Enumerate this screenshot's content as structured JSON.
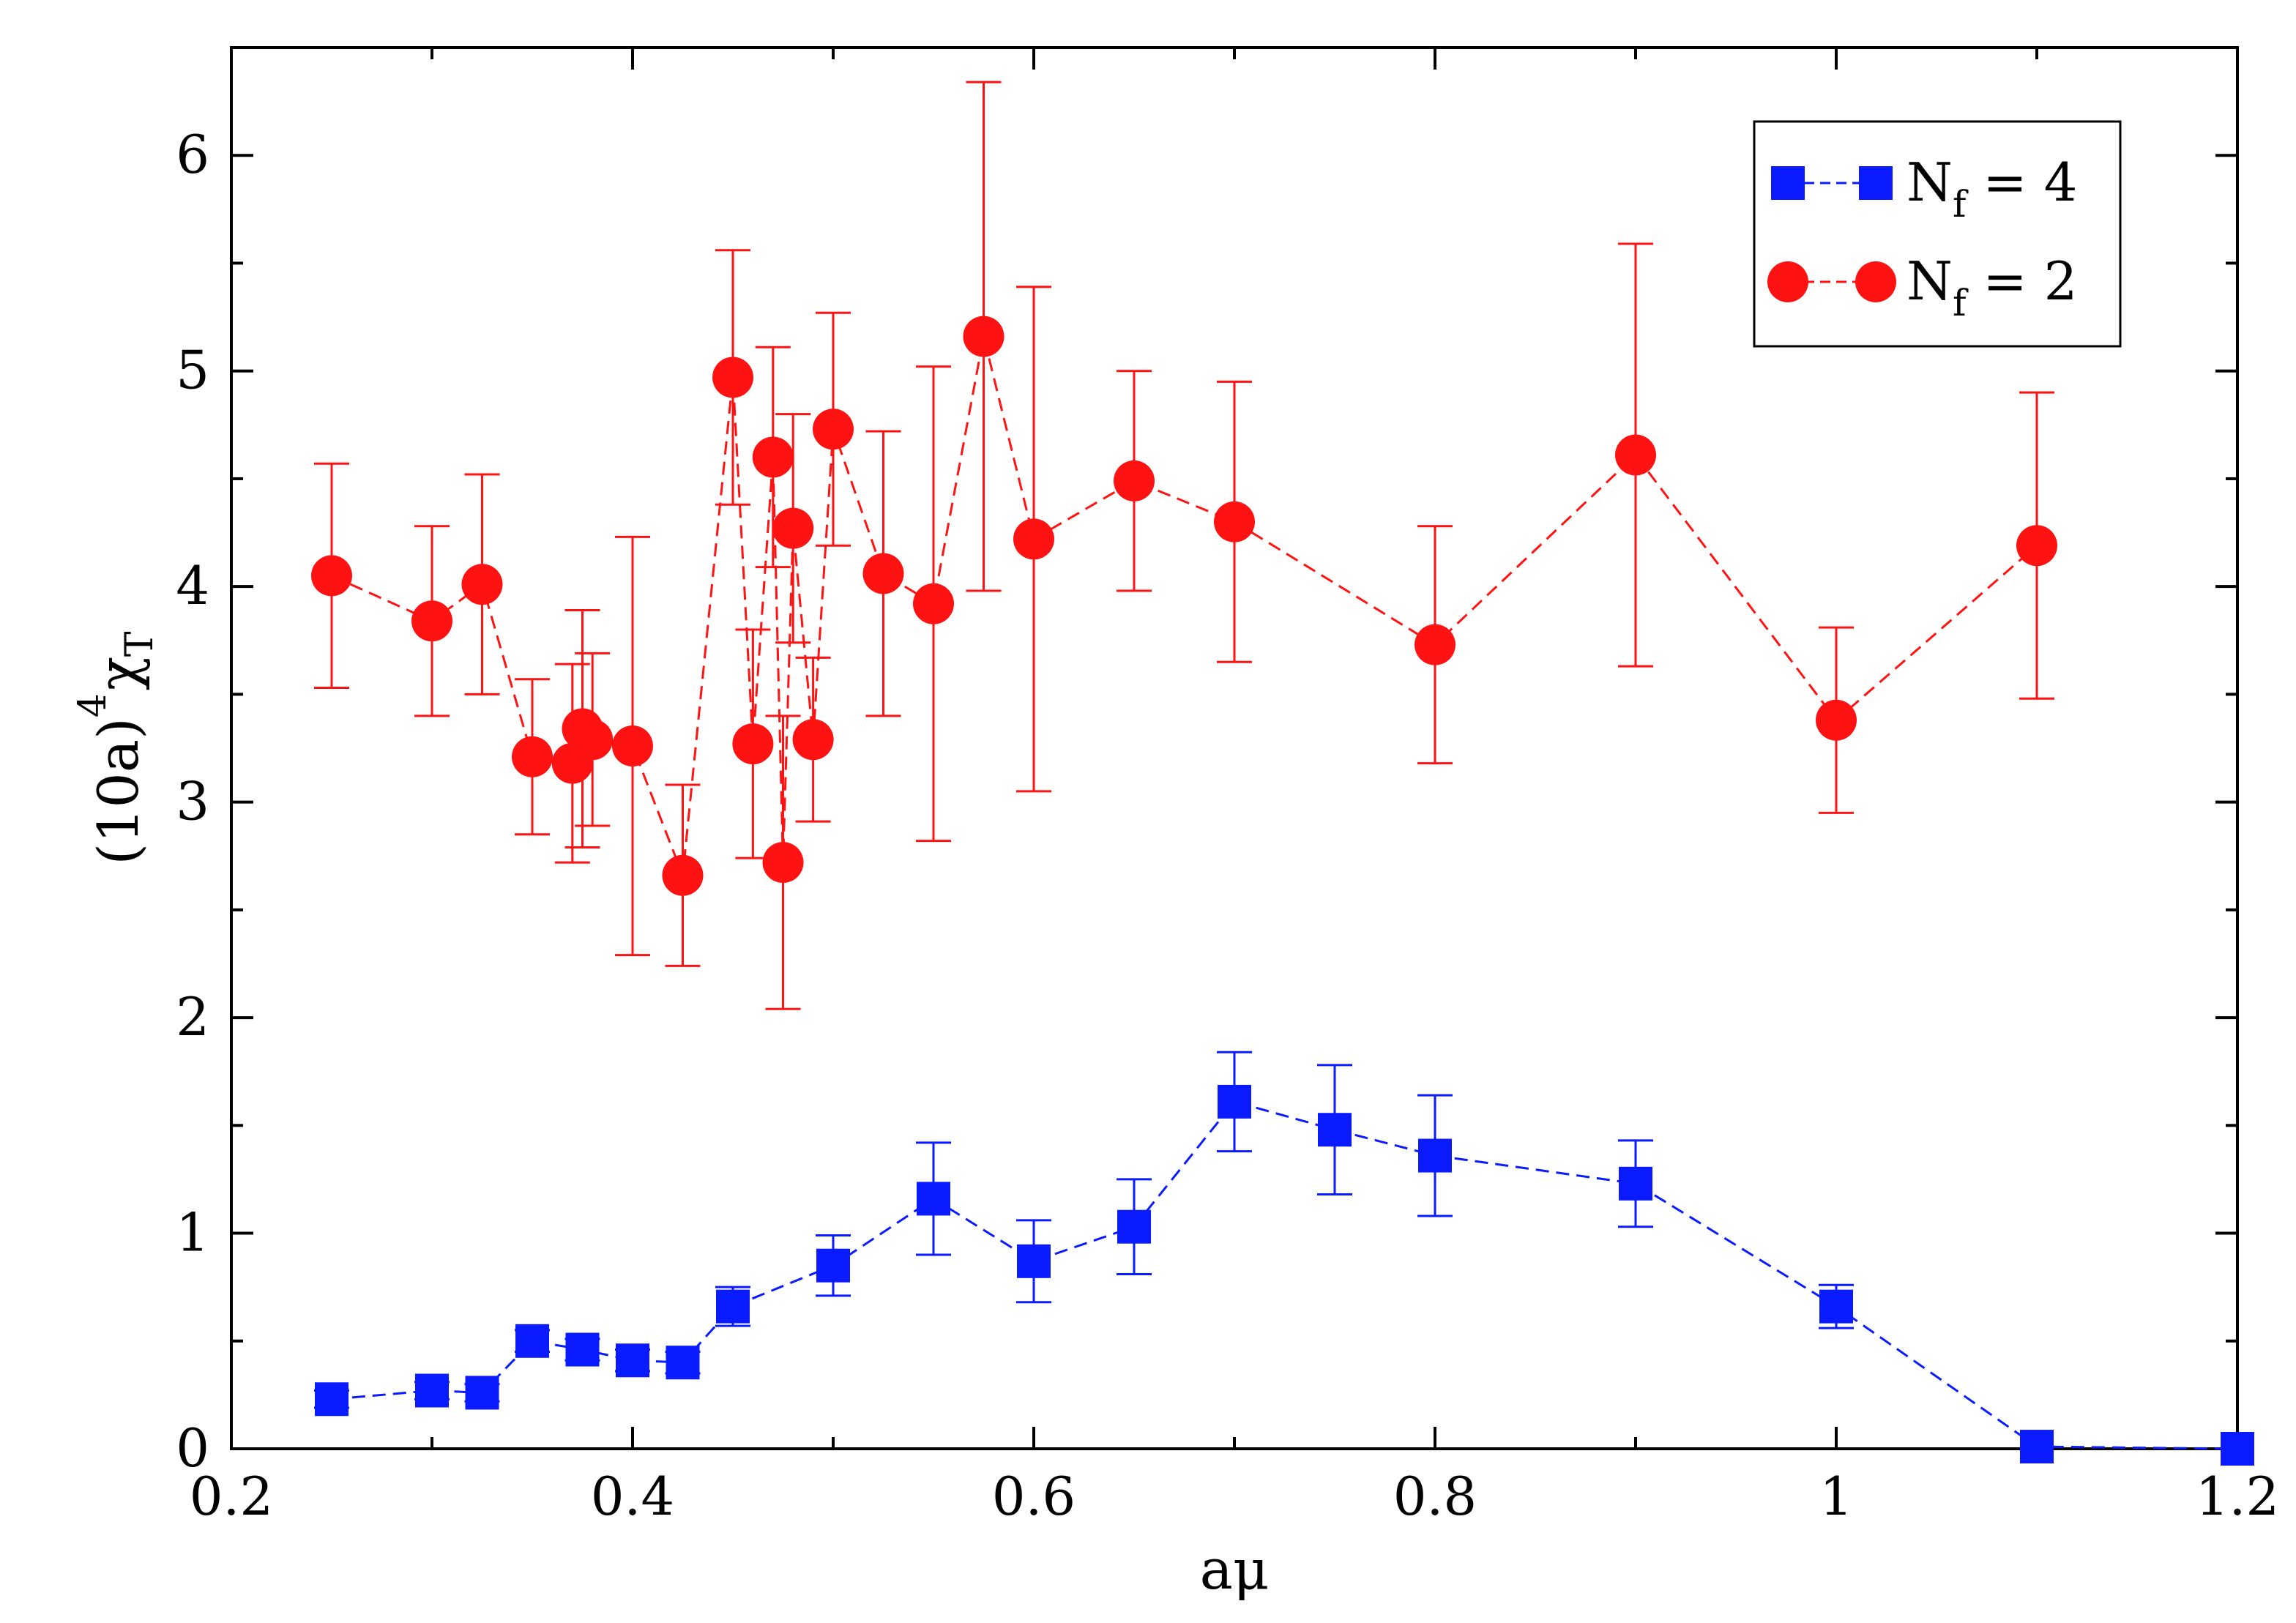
{
  "chart_data": {
    "type": "scatter",
    "title": "",
    "xlabel": "aμ",
    "ylabel": {
      "base": "(10a)",
      "power": "4",
      "symbol": "χ",
      "subscript": "T"
    },
    "xlim": [
      0.2,
      1.2
    ],
    "ylim": [
      0,
      6.5
    ],
    "x_ticks": [
      0.2,
      0.4,
      0.6,
      0.8,
      1.0,
      1.2
    ],
    "x_tick_labels": [
      "0.2",
      "0.4",
      "0.6",
      "0.8",
      "1",
      "1.2"
    ],
    "y_ticks": [
      0,
      1,
      2,
      3,
      4,
      5,
      6
    ],
    "y_tick_labels": [
      "0",
      "1",
      "2",
      "3",
      "4",
      "5",
      "6"
    ],
    "grid": false,
    "legend_position": "top-right",
    "series": [
      {
        "name": "Nf = 4",
        "label_main": "N",
        "label_sub": "f",
        "label_rest": " = 4",
        "marker": "square",
        "color": "#0a1bff",
        "line_style": "dashed",
        "points": [
          {
            "x": 0.25,
            "y": 0.23,
            "err": 0.04
          },
          {
            "x": 0.3,
            "y": 0.27,
            "err": 0.04
          },
          {
            "x": 0.325,
            "y": 0.26,
            "err": 0.04
          },
          {
            "x": 0.35,
            "y": 0.5,
            "err": 0.05
          },
          {
            "x": 0.375,
            "y": 0.46,
            "err": 0.05
          },
          {
            "x": 0.4,
            "y": 0.41,
            "err": 0.05
          },
          {
            "x": 0.425,
            "y": 0.4,
            "err": 0.05
          },
          {
            "x": 0.45,
            "y": 0.66,
            "err": 0.09
          },
          {
            "x": 0.5,
            "y": 0.85,
            "err": 0.14
          },
          {
            "x": 0.55,
            "y": 1.16,
            "err": 0.26
          },
          {
            "x": 0.6,
            "y": 0.87,
            "err": 0.19
          },
          {
            "x": 0.65,
            "y": 1.03,
            "err": 0.22
          },
          {
            "x": 0.7,
            "y": 1.61,
            "err": 0.23
          },
          {
            "x": 0.75,
            "y": 1.48,
            "err": 0.3
          },
          {
            "x": 0.8,
            "y": 1.36,
            "err": 0.28
          },
          {
            "x": 0.9,
            "y": 1.23,
            "err": 0.2
          },
          {
            "x": 1.0,
            "y": 0.66,
            "err": 0.1
          },
          {
            "x": 1.1,
            "y": 0.01,
            "err": 0.0
          },
          {
            "x": 1.2,
            "y": 0.0,
            "err": 0.0
          }
        ]
      },
      {
        "name": "Nf = 2",
        "label_main": "N",
        "label_sub": "f",
        "label_rest": " = 2",
        "marker": "circle",
        "color": "#ff1212",
        "line_style": "dashed",
        "points": [
          {
            "x": 0.25,
            "y": 4.05,
            "err": 0.52
          },
          {
            "x": 0.3,
            "y": 3.84,
            "err": 0.44
          },
          {
            "x": 0.325,
            "y": 4.01,
            "err": 0.51
          },
          {
            "x": 0.35,
            "y": 3.21,
            "err": 0.36
          },
          {
            "x": 0.37,
            "y": 3.18,
            "err": 0.46
          },
          {
            "x": 0.375,
            "y": 3.34,
            "err": 0.55
          },
          {
            "x": 0.38,
            "y": 3.29,
            "err": 0.4
          },
          {
            "x": 0.4,
            "y": 3.26,
            "err": 0.97
          },
          {
            "x": 0.425,
            "y": 2.66,
            "err": 0.42
          },
          {
            "x": 0.45,
            "y": 4.97,
            "err": 0.59
          },
          {
            "x": 0.46,
            "y": 3.27,
            "err": 0.53
          },
          {
            "x": 0.47,
            "y": 4.6,
            "err": 0.51
          },
          {
            "x": 0.475,
            "y": 2.72,
            "err": 0.68
          },
          {
            "x": 0.48,
            "y": 4.27,
            "err": 0.53
          },
          {
            "x": 0.49,
            "y": 3.29,
            "err": 0.38
          },
          {
            "x": 0.5,
            "y": 4.73,
            "err": 0.54
          },
          {
            "x": 0.525,
            "y": 4.06,
            "err": 0.66
          },
          {
            "x": 0.55,
            "y": 3.92,
            "err": 1.1
          },
          {
            "x": 0.575,
            "y": 5.16,
            "err": 1.18
          },
          {
            "x": 0.6,
            "y": 4.22,
            "err": 1.17
          },
          {
            "x": 0.65,
            "y": 4.49,
            "err": 0.51
          },
          {
            "x": 0.7,
            "y": 4.3,
            "err": 0.65
          },
          {
            "x": 0.8,
            "y": 3.73,
            "err": 0.55
          },
          {
            "x": 0.9,
            "y": 4.61,
            "err": 0.98
          },
          {
            "x": 1.0,
            "y": 3.38,
            "err": 0.43
          },
          {
            "x": 1.1,
            "y": 4.19,
            "err": 0.71
          }
        ]
      }
    ]
  }
}
